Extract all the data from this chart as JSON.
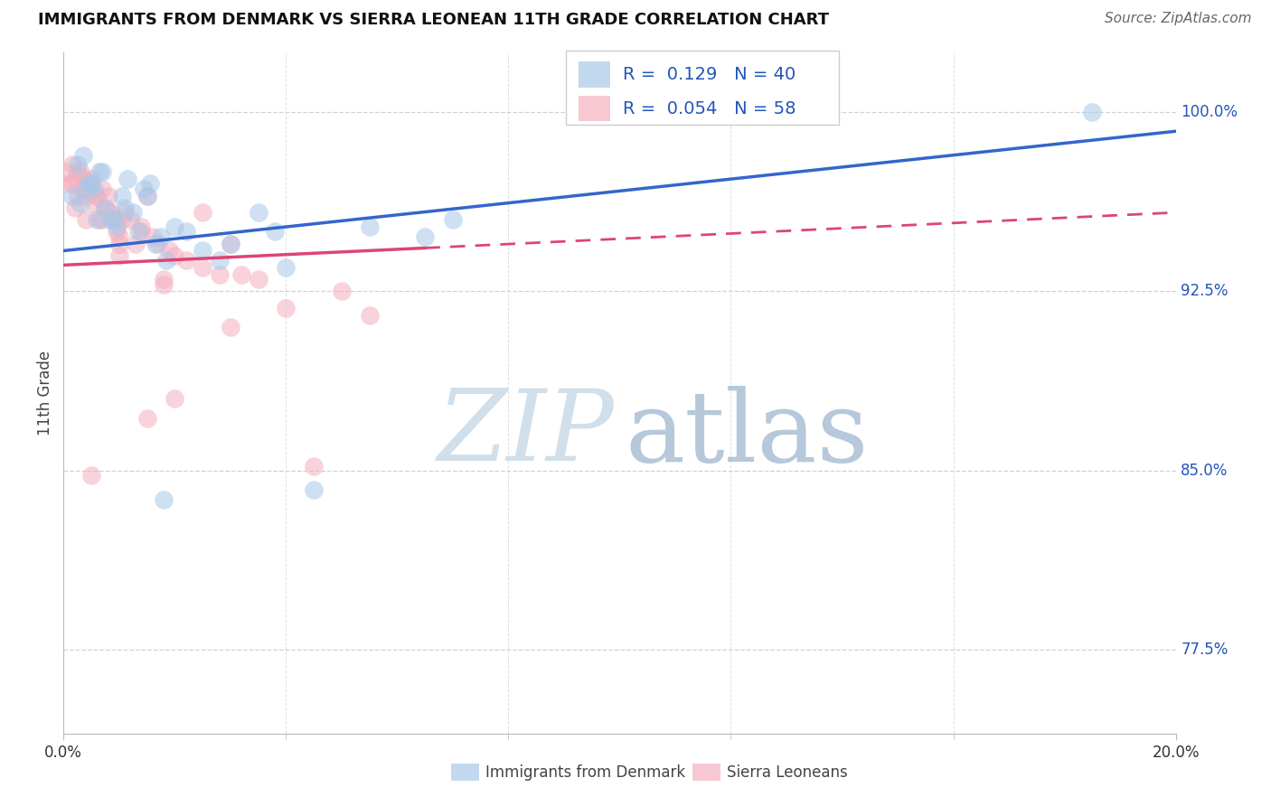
{
  "title": "IMMIGRANTS FROM DENMARK VS SIERRA LEONEAN 11TH GRADE CORRELATION CHART",
  "source": "Source: ZipAtlas.com",
  "ylabel": "11th Grade",
  "ytick_values": [
    77.5,
    85.0,
    92.5,
    100.0
  ],
  "xmin": 0.0,
  "xmax": 20.0,
  "ymin": 74.0,
  "ymax": 102.5,
  "blue_color": "#a8c8e8",
  "pink_color": "#f4b0c0",
  "line_blue": "#3366cc",
  "line_pink": "#dd4477",
  "text_blue": "#2255bb",
  "watermark_zip": "#c8d8ea",
  "watermark_atlas": "#b0c8e0",
  "background": "#ffffff",
  "grid_color": "#cccccc",
  "blue_line_y0": 94.2,
  "blue_line_y1": 99.2,
  "pink_line_y0": 93.6,
  "pink_line_y1": 95.8,
  "pink_solid_end_x": 6.5,
  "blue_scatter_x": [
    0.15,
    0.25,
    0.35,
    0.45,
    0.55,
    0.65,
    0.75,
    0.85,
    0.95,
    1.05,
    1.15,
    1.25,
    1.35,
    1.45,
    1.55,
    1.65,
    1.75,
    1.85,
    2.0,
    2.2,
    2.5,
    3.0,
    3.5,
    4.0,
    5.5,
    6.5,
    7.0,
    0.3,
    0.5,
    0.7,
    0.9,
    1.1,
    1.5,
    2.8,
    3.8,
    0.4,
    0.6,
    1.8,
    4.5,
    18.5
  ],
  "blue_scatter_y": [
    96.5,
    97.8,
    98.2,
    97.0,
    96.8,
    97.5,
    96.0,
    95.5,
    95.2,
    96.5,
    97.2,
    95.8,
    95.0,
    96.8,
    97.0,
    94.5,
    94.8,
    93.8,
    95.2,
    95.0,
    94.2,
    94.5,
    95.8,
    93.5,
    95.2,
    94.8,
    95.5,
    96.2,
    97.0,
    97.5,
    95.5,
    96.0,
    96.5,
    93.8,
    95.0,
    96.8,
    95.5,
    83.8,
    84.2,
    100.0
  ],
  "pink_scatter_x": [
    0.05,
    0.1,
    0.15,
    0.2,
    0.25,
    0.3,
    0.35,
    0.4,
    0.45,
    0.5,
    0.55,
    0.6,
    0.65,
    0.7,
    0.75,
    0.8,
    0.85,
    0.9,
    0.95,
    1.0,
    1.05,
    1.1,
    1.2,
    1.3,
    1.4,
    1.5,
    1.6,
    1.7,
    1.8,
    1.9,
    2.0,
    2.2,
    2.5,
    2.8,
    3.0,
    3.5,
    4.0,
    5.0,
    0.2,
    0.4,
    0.6,
    0.8,
    1.0,
    1.4,
    1.8,
    2.5,
    3.2,
    0.15,
    0.35,
    0.7,
    1.0,
    2.0,
    4.5,
    5.5,
    0.5,
    1.5,
    3.0,
    0.25
  ],
  "pink_scatter_y": [
    97.5,
    97.0,
    97.8,
    97.2,
    96.5,
    97.5,
    96.8,
    96.5,
    97.0,
    97.2,
    96.2,
    96.5,
    95.5,
    96.8,
    96.0,
    96.5,
    95.8,
    95.5,
    95.0,
    94.8,
    95.5,
    95.8,
    95.5,
    94.5,
    95.2,
    96.5,
    94.8,
    94.5,
    93.0,
    94.2,
    94.0,
    93.8,
    93.5,
    93.2,
    94.5,
    93.0,
    91.8,
    92.5,
    96.0,
    95.5,
    96.5,
    95.8,
    94.5,
    95.0,
    92.8,
    95.8,
    93.2,
    97.0,
    97.2,
    95.5,
    94.0,
    88.0,
    85.2,
    91.5,
    84.8,
    87.2,
    91.0,
    97.5
  ]
}
